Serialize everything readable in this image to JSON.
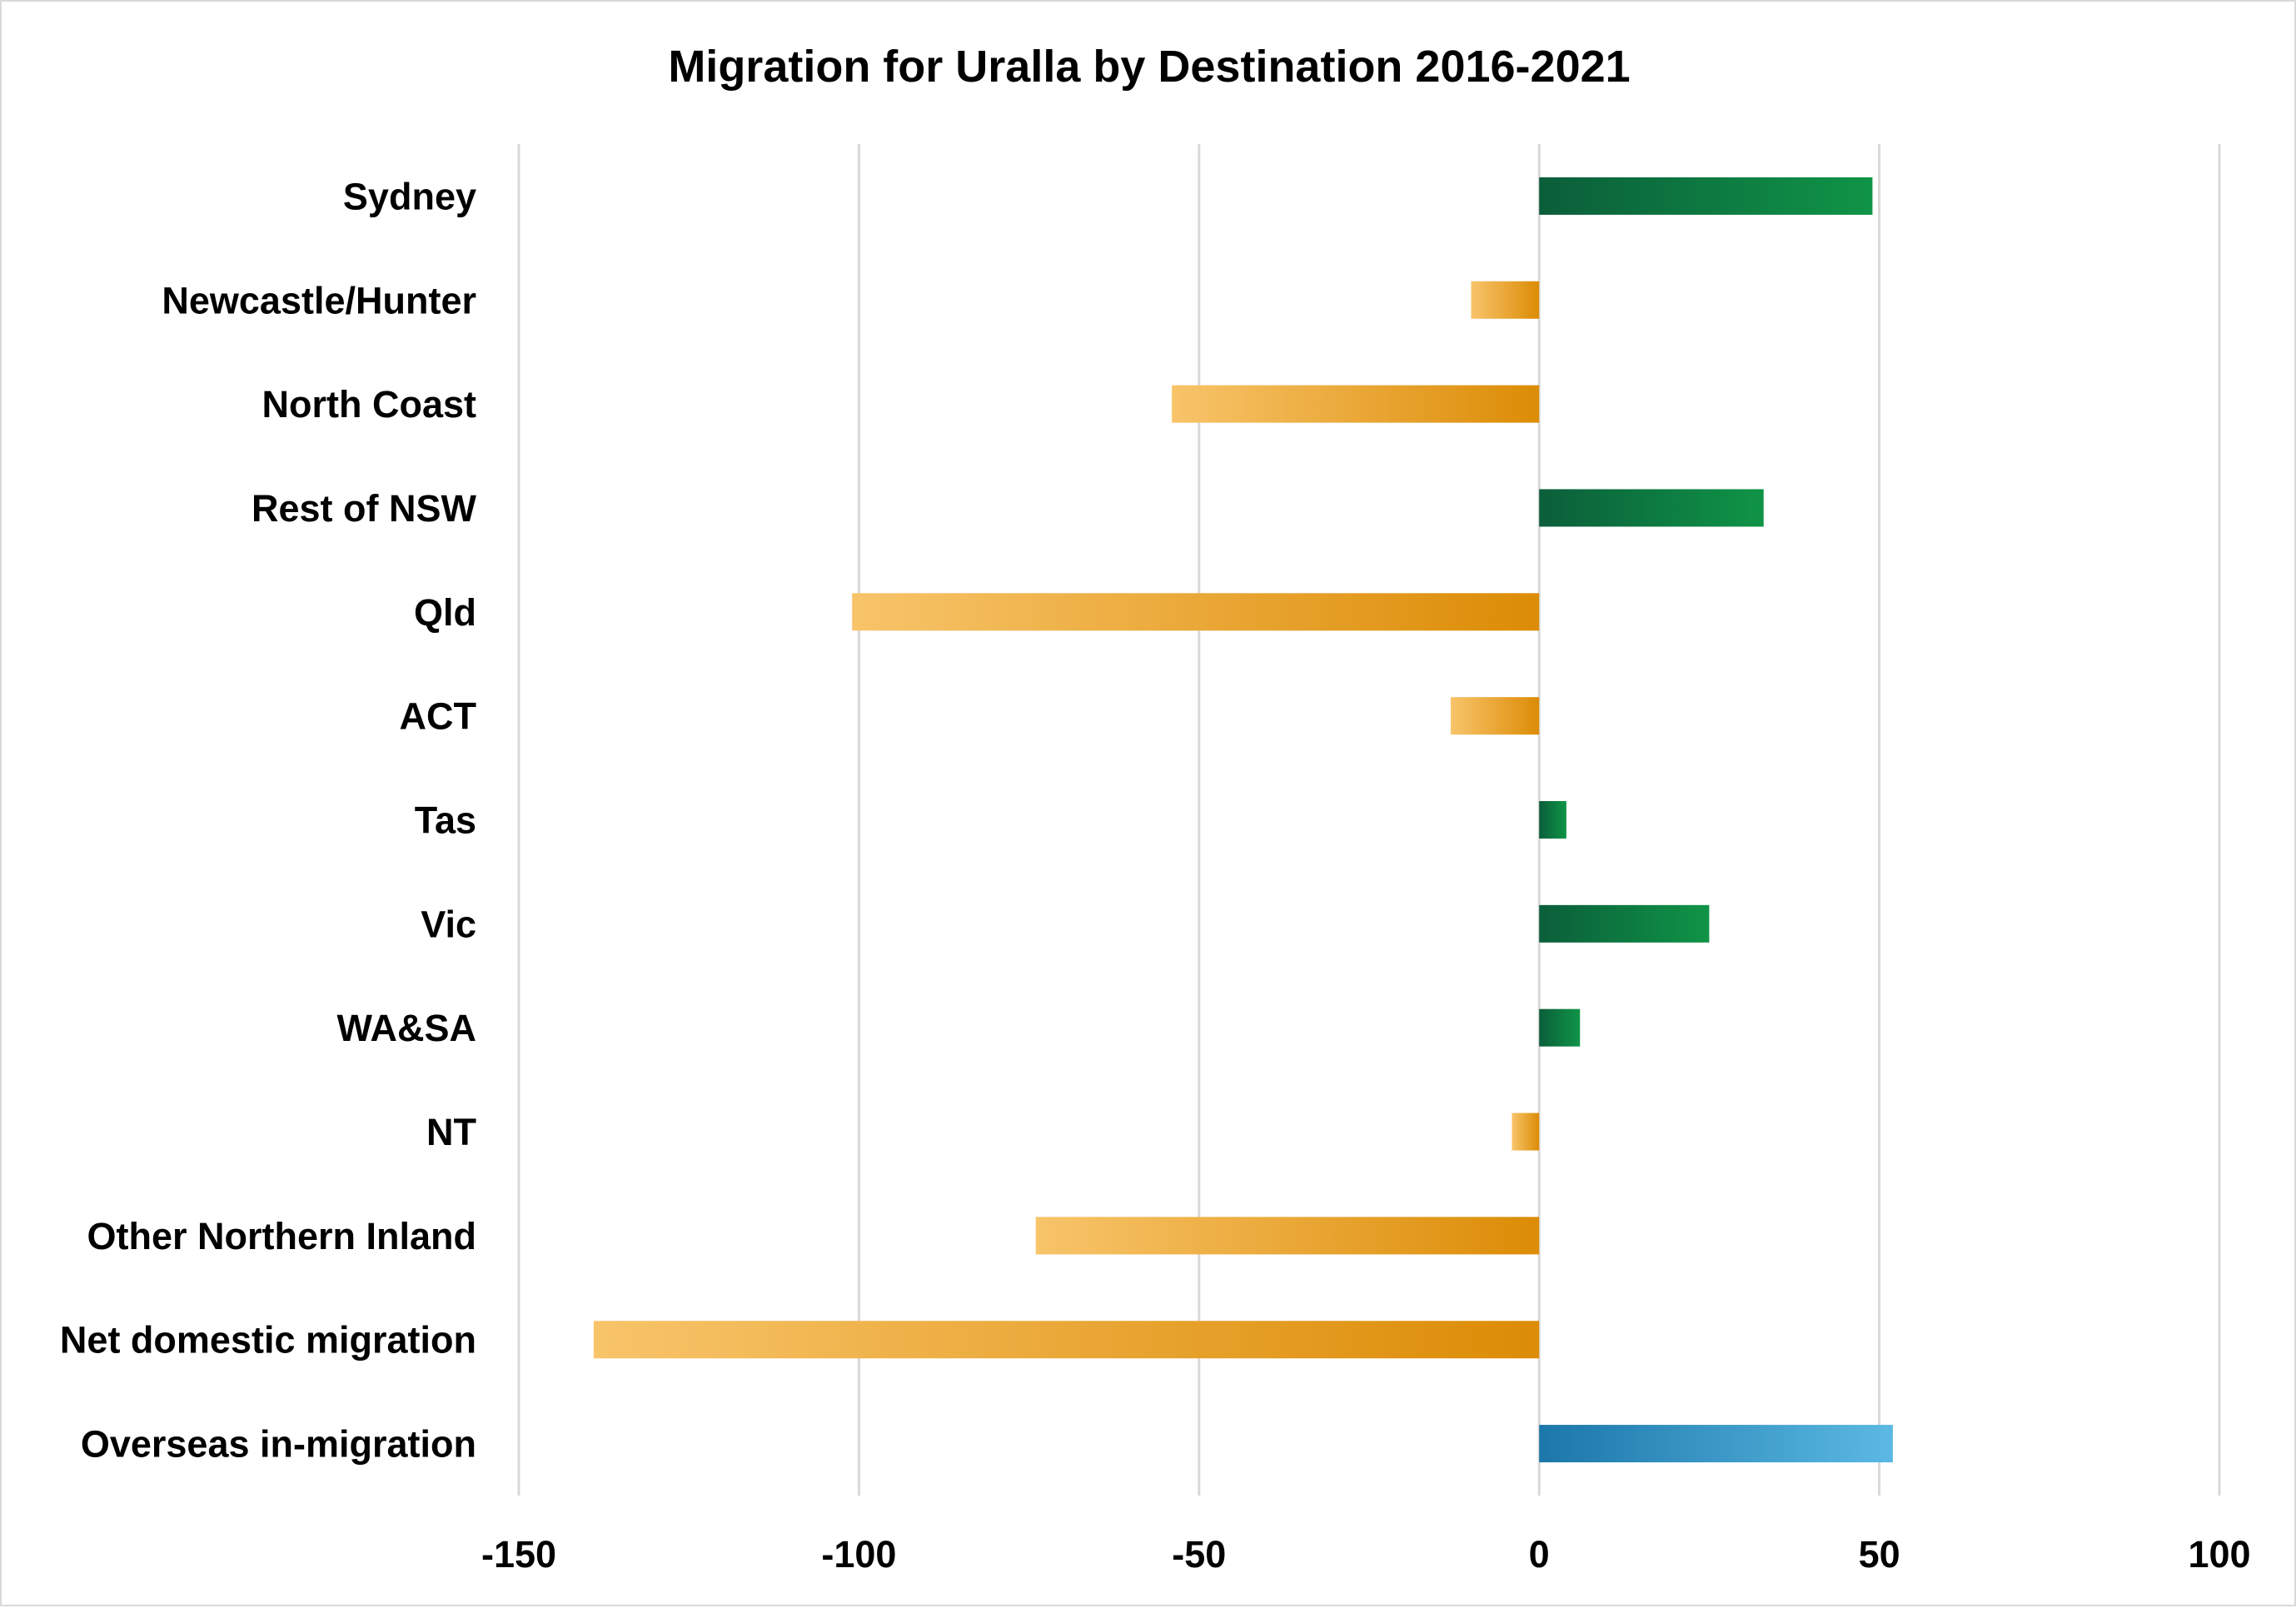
{
  "chart_data": {
    "type": "bar",
    "orientation": "horizontal",
    "title": "Migration for Uralla by Destination 2016-2021",
    "xlabel": "",
    "ylabel": "",
    "categories": [
      "Sydney",
      "Newcastle/Hunter",
      "North Coast",
      "Rest of NSW",
      "Qld",
      "ACT",
      "Tas",
      "Vic",
      "WA&SA",
      "NT",
      "Other Northern Inland",
      "Net domestic migration",
      "Overseas in-migration"
    ],
    "values": [
      49,
      -10,
      -54,
      33,
      -101,
      -13,
      4,
      25,
      6,
      -4,
      -74,
      -139,
      52
    ],
    "xlim": [
      -150,
      100
    ],
    "x_ticks": [
      -150,
      -100,
      -50,
      0,
      50,
      100
    ],
    "x_tick_labels": [
      "-150",
      "-100",
      "-50",
      "0",
      "50",
      "100"
    ],
    "grid": "vertical",
    "legend": "none",
    "colors": {
      "positive": {
        "from": "#0b5e3a",
        "to": "#0f9447"
      },
      "negative": {
        "from": "#f8c46a",
        "to": "#dc8c06"
      },
      "overseas": {
        "from": "#1b77a9",
        "to": "#5bb9e3"
      }
    }
  }
}
